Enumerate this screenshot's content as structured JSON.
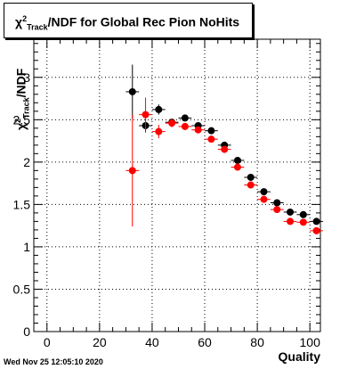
{
  "chart_data": {
    "type": "scatter",
    "title": {
      "chi": "χ",
      "sup": "2",
      "sub": "Track",
      "rest": "/NDF for Global Rec Pion NoHits"
    },
    "xlabel": "Quality",
    "ylabel": {
      "chi": "χ",
      "sup": "2",
      "sub": "Track",
      "rest": "/NDF"
    },
    "xlim": [
      -5,
      104
    ],
    "ylim": [
      0,
      3.45
    ],
    "xticks": [
      0,
      20,
      40,
      60,
      80,
      100
    ],
    "yticks": [
      0,
      0.5,
      1,
      1.5,
      2,
      2.5,
      3
    ],
    "grid": true,
    "series": [
      {
        "color": "#000000",
        "points": [
          {
            "x": 32.5,
            "y": 2.83,
            "err": 0.32
          },
          {
            "x": 37.5,
            "y": 2.43,
            "err": 0.08
          },
          {
            "x": 42.5,
            "y": 2.62,
            "err": 0.06
          },
          {
            "x": 47.5,
            "y": 2.47,
            "err": 0.04
          },
          {
            "x": 52.5,
            "y": 2.52,
            "err": 0.03
          },
          {
            "x": 57.5,
            "y": 2.43,
            "err": 0.03
          },
          {
            "x": 62.5,
            "y": 2.37,
            "err": 0.03
          },
          {
            "x": 67.5,
            "y": 2.2,
            "err": 0.03
          },
          {
            "x": 72.5,
            "y": 2.02,
            "err": 0.03
          },
          {
            "x": 77.5,
            "y": 1.82,
            "err": 0.03
          },
          {
            "x": 82.5,
            "y": 1.65,
            "err": 0.03
          },
          {
            "x": 87.5,
            "y": 1.52,
            "err": 0.02
          },
          {
            "x": 92.5,
            "y": 1.41,
            "err": 0.02
          },
          {
            "x": 97.5,
            "y": 1.38,
            "err": 0.02
          },
          {
            "x": 102.5,
            "y": 1.3,
            "err": 0.02
          }
        ]
      },
      {
        "color": "#ff0000",
        "points": [
          {
            "x": 32.5,
            "y": 1.9,
            "err": 0.66
          },
          {
            "x": 37.5,
            "y": 2.56,
            "err": 0.2
          },
          {
            "x": 42.5,
            "y": 2.36,
            "err": 0.08
          },
          {
            "x": 47.5,
            "y": 2.46,
            "err": 0.05
          },
          {
            "x": 52.5,
            "y": 2.42,
            "err": 0.04
          },
          {
            "x": 57.5,
            "y": 2.38,
            "err": 0.03
          },
          {
            "x": 62.5,
            "y": 2.27,
            "err": 0.03
          },
          {
            "x": 67.5,
            "y": 2.15,
            "err": 0.03
          },
          {
            "x": 72.5,
            "y": 1.94,
            "err": 0.03
          },
          {
            "x": 77.5,
            "y": 1.73,
            "err": 0.03
          },
          {
            "x": 82.5,
            "y": 1.56,
            "err": 0.03
          },
          {
            "x": 87.5,
            "y": 1.44,
            "err": 0.02
          },
          {
            "x": 92.5,
            "y": 1.3,
            "err": 0.02
          },
          {
            "x": 97.5,
            "y": 1.29,
            "err": 0.02
          },
          {
            "x": 102.5,
            "y": 1.19,
            "err": 0.02
          }
        ]
      }
    ]
  },
  "timestamp": "Wed Nov 25 12:05:10 2020"
}
